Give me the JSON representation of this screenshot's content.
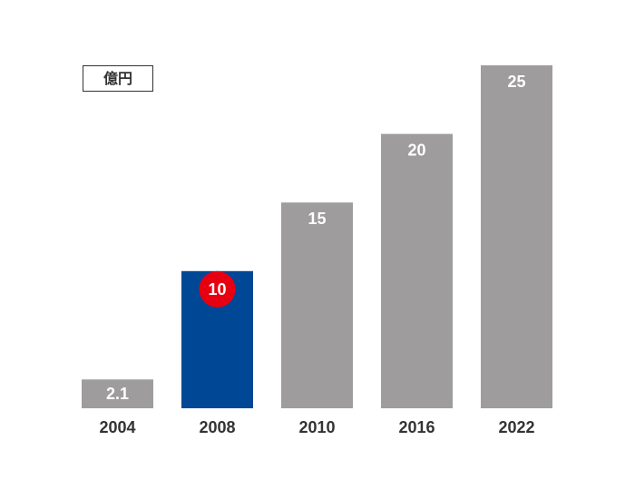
{
  "chart_data": {
    "type": "bar",
    "unit_label": "億円",
    "categories": [
      "2004",
      "2008",
      "2010",
      "2016",
      "2022"
    ],
    "values": [
      2.1,
      10,
      15,
      20,
      25
    ],
    "value_labels": [
      "2.1",
      "10",
      "15",
      "20",
      "25"
    ],
    "highlight_index": 1,
    "ylim": [
      0,
      25
    ],
    "grid": false,
    "colors": {
      "default_bar": "#9e9c9d",
      "highlight_bar": "#004795",
      "highlight_badge": "#e60012",
      "label_text": "#ffffff",
      "tick_text": "#333333"
    }
  }
}
